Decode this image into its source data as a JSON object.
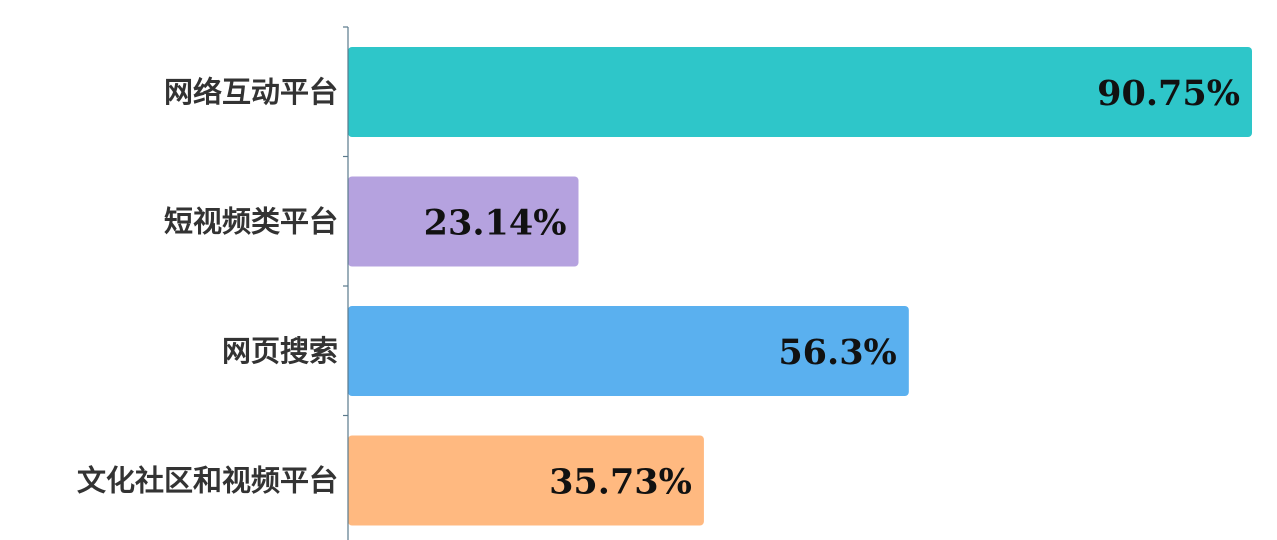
{
  "chart_data": {
    "type": "bar",
    "orientation": "horizontal",
    "title": "",
    "xlabel": "",
    "ylabel": "",
    "xlim": [
      0,
      100
    ],
    "grid": false,
    "legend": "none",
    "categories": [
      "网络互动平台",
      "短视频类平台",
      "网页搜索",
      "文化社区和视频平台"
    ],
    "values": [
      90.75,
      23.14,
      56.3,
      35.73
    ],
    "value_labels": [
      "90.75%",
      "23.14%",
      "56.3%",
      "35.73%"
    ],
    "colors": [
      "#2EC6C9",
      "#B5A2DF",
      "#5AB0EF",
      "#FFB980"
    ],
    "axis_color": "#5B7A8C"
  }
}
